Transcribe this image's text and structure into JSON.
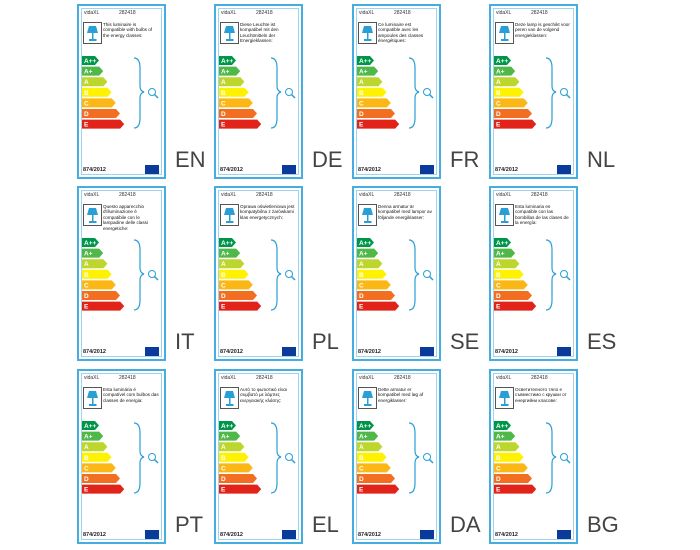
{
  "brand": "vidaXL",
  "code": "282418",
  "regulation": "874/2012",
  "energy_classes": [
    "A++",
    "A+",
    "A",
    "B",
    "C",
    "D",
    "E"
  ],
  "labels": [
    {
      "lang": "EN",
      "text": "This luminaire is compatible with bulbs of the energy classes:"
    },
    {
      "lang": "DE",
      "text": "Diese Leuchte ist kompatibel mit den Leuchtmitteln der Energieklassen:"
    },
    {
      "lang": "FR",
      "text": "Ce luminaire est compatible avec les ampoules des classes énergétiques:"
    },
    {
      "lang": "NL",
      "text": "Deze lamp is geschikt voor peren van de volgend energieklassen:"
    },
    {
      "lang": "IT",
      "text": "Questo apparecchio d'illuminazione è compatibile con le lampadine delle classi energetiche:"
    },
    {
      "lang": "PL",
      "text": "Oprawa oświetleniowa jest kompatybilna z żarówkami klas energetycznych:"
    },
    {
      "lang": "SE",
      "text": "Denna armatur är kompatibel med lampor av följande energiklasser:"
    },
    {
      "lang": "ES",
      "text": "Esta luminaria es compatible con las bombillas de las clases de la energía:"
    },
    {
      "lang": "PT",
      "text": "Esta luminária é compatível com bulbos das classes de energia:"
    },
    {
      "lang": "EL",
      "text": "Αυτό το φωτιστικό είναι συμβατό με λάμπες ενεργειακής κλάσης:"
    },
    {
      "lang": "DA",
      "text": "Dette armatur er kompatibel med løg af energiklasser:"
    },
    {
      "lang": "BG",
      "text": "Осветителното тяло е съвместимо с крушки от енергийни класове:"
    }
  ]
}
